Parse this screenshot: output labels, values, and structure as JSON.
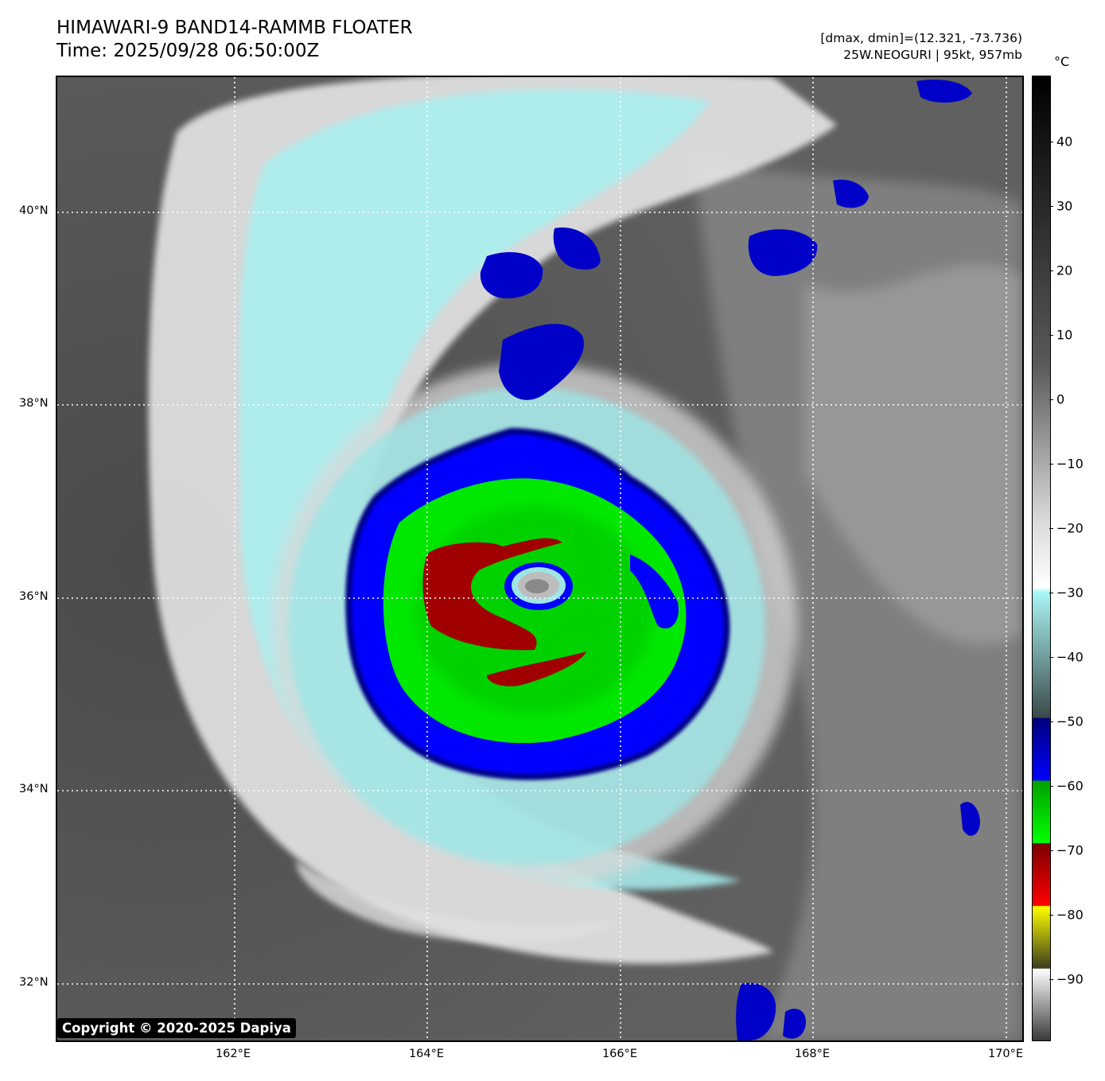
{
  "header": {
    "title_line1": "HIMAWARI-9 BAND14-RAMMB FLOATER",
    "title_line2": "Time: 2025/09/28 06:50:00Z",
    "info_line1": "[dmax, dmin]=(12.321, -73.736)",
    "info_line2": "25W.NEOGURI | 95kt, 957mb"
  },
  "map": {
    "lat_labels": [
      "40°N",
      "38°N",
      "36°N",
      "34°N",
      "32°N"
    ],
    "lon_labels": [
      "162°E",
      "164°E",
      "166°E",
      "168°E",
      "170°E"
    ],
    "copyright": "Copyright © 2020-2025 Dapiya"
  },
  "colorbar": {
    "unit": "°C",
    "labels": [
      "40",
      "30",
      "20",
      "10",
      "0",
      "−10",
      "−20",
      "−30",
      "−40",
      "−50",
      "−60",
      "−70",
      "−80",
      "−90"
    ],
    "colors": {
      "warm_top": "#000000",
      "neutral": "#d9d9d9",
      "cyan": "#aaf5f5",
      "dark_slate": "#3b4a4a",
      "navy": "#00007a",
      "blue": "#0000ff",
      "green": "#00ff00",
      "dark_green": "#00a000",
      "dark_red": "#7a0000",
      "red": "#ff0000",
      "yellow": "#ffff00",
      "olive": "#3c3c1e"
    }
  }
}
